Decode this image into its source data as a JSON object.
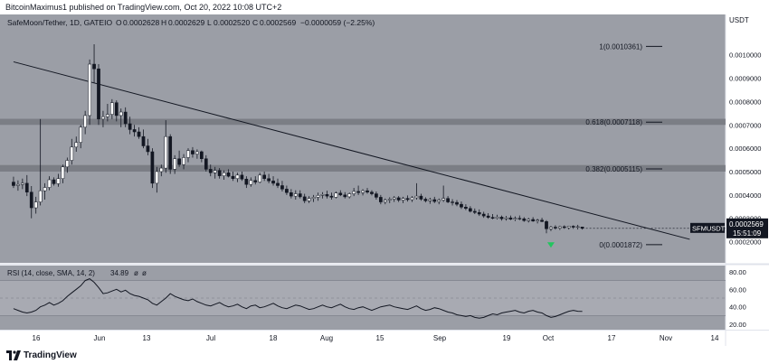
{
  "header": {
    "text": "BitcoinMaximus1 published on TradingView.com, Oct 20, 2022 10:08 UTC+2"
  },
  "legend": {
    "symbol": "SafeMoon/Tether, 1D, GATEIO",
    "o_label": "O",
    "o_value": "0.0002628",
    "h_label": "H",
    "h_value": "0.0002629",
    "l_label": "L",
    "l_value": "0.0002520",
    "c_label": "C",
    "c_value": "0.0002569",
    "change": "−0.0000059 (−2.25%)"
  },
  "rsi_legend": {
    "name": "RSI (14, close, SMA, 14, 2)",
    "value": "34.89",
    "extra1": "ø",
    "extra2": "ø"
  },
  "footer": {
    "brand": "TradingView"
  },
  "colors": {
    "background": "#9b9ea6",
    "candle_up": "#ffffff",
    "candle_down": "#131722",
    "zone": "#707379",
    "rsi_band": "#b0b3ba",
    "green_arrow": "#22c55e",
    "price_tag": "#131722"
  },
  "chart_data": [
    {
      "type": "candlestick",
      "title": "SafeMoon/Tether, 1D, GATEIO",
      "currency": "USDT",
      "y_ticks": [
        "0.0010000",
        "0.0009000",
        "0.0008000",
        "0.0007000",
        "0.0006000",
        "0.0005000",
        "0.0004000",
        "0.0003000",
        "0.0002000"
      ],
      "x_ticks": [
        "16",
        "Jun",
        "13",
        "Jul",
        "18",
        "Aug",
        "15",
        "Sep",
        "19",
        "Oct",
        "17",
        "Nov",
        "14"
      ],
      "ylim": [
        0.000175,
        0.00108
      ],
      "fib_levels": [
        {
          "label": "1(0.0010361)",
          "value": 0.0010361
        },
        {
          "label": "0.618(0.0007118)",
          "value": 0.0007118
        },
        {
          "label": "0.382(0.0005115)",
          "value": 0.0005115
        },
        {
          "label": "0(0.0001872)",
          "value": 0.0001872
        }
      ],
      "resistance_zones": [
        {
          "low": 0.0007,
          "high": 0.000726
        },
        {
          "low": 0.0005,
          "high": 0.000528
        }
      ],
      "trendline": {
        "from": {
          "day": 1,
          "price": 0.00097
        },
        "to": {
          "day": 152,
          "price": 0.00021
        }
      },
      "current_price": "0.0002569",
      "countdown": "15:51:09",
      "ticker": "SFMUSDT",
      "candles": [
        [
          0.000455,
          0.000478,
          0.00043,
          0.00044
        ],
        [
          0.00044,
          0.000462,
          0.000418,
          0.000445
        ],
        [
          0.000445,
          0.00047,
          0.000425,
          0.00045
        ],
        [
          0.00045,
          0.000485,
          0.000395,
          0.000412
        ],
        [
          0.000412,
          0.000438,
          0.0003,
          0.000345
        ],
        [
          0.000345,
          0.000392,
          0.00032,
          0.00037
        ],
        [
          0.00037,
          0.000725,
          0.000355,
          0.000418
        ],
        [
          0.000418,
          0.00045,
          0.00038,
          0.000432
        ],
        [
          0.000432,
          0.00048,
          0.00042,
          0.000465
        ],
        [
          0.000465,
          0.000475,
          0.00044,
          0.000448
        ],
        [
          0.000448,
          0.00049,
          0.000435,
          0.00047
        ],
        [
          0.00047,
          0.00053,
          0.00045,
          0.00052
        ],
        [
          0.00052,
          0.00056,
          0.000495,
          0.000548
        ],
        [
          0.000548,
          0.00064,
          0.00053,
          0.000605
        ],
        [
          0.000605,
          0.00065,
          0.000585,
          0.000625
        ],
        [
          0.000625,
          0.0007,
          0.0006,
          0.00069
        ],
        [
          0.00069,
          0.00076,
          0.00066,
          0.00074
        ],
        [
          0.00074,
          0.00098,
          0.0007,
          0.00096
        ],
        [
          0.00096,
          0.001045,
          0.00088,
          0.00094
        ],
        [
          0.00094,
          0.00096,
          0.0007,
          0.000725
        ],
        [
          0.000725,
          0.00076,
          0.00069,
          0.000735
        ],
        [
          0.000735,
          0.00079,
          0.000715,
          0.000745
        ],
        [
          0.000745,
          0.00081,
          0.000725,
          0.000795
        ],
        [
          0.000795,
          0.000805,
          0.000715,
          0.00074
        ],
        [
          0.00074,
          0.00077,
          0.00069,
          0.000755
        ],
        [
          0.000755,
          0.000775,
          0.00069,
          0.000705
        ],
        [
          0.000705,
          0.000735,
          0.00066,
          0.00068
        ],
        [
          0.00068,
          0.0007,
          0.00065,
          0.00067
        ],
        [
          0.00067,
          0.00069,
          0.00064,
          0.00065
        ],
        [
          0.00065,
          0.00068,
          0.0006,
          0.00061
        ],
        [
          0.00061,
          0.00064,
          0.00057,
          0.000585
        ],
        [
          0.000585,
          0.0006,
          0.00043,
          0.00045
        ],
        [
          0.00045,
          0.00052,
          0.00041,
          0.0005
        ],
        [
          0.0005,
          0.00053,
          0.00048,
          0.000515
        ],
        [
          0.000515,
          0.00072,
          0.000495,
          0.00065
        ],
        [
          0.00065,
          0.00066,
          0.00049,
          0.00051
        ],
        [
          0.00051,
          0.00057,
          0.00049,
          0.000555
        ],
        [
          0.000555,
          0.00059,
          0.00052,
          0.00053
        ],
        [
          0.00053,
          0.000575,
          0.00051,
          0.00056
        ],
        [
          0.00056,
          0.0006,
          0.00054,
          0.00059
        ],
        [
          0.00059,
          0.000605,
          0.00056,
          0.000575
        ],
        [
          0.000575,
          0.000595,
          0.000555,
          0.000585
        ],
        [
          0.000585,
          0.00059,
          0.00054,
          0.000555
        ],
        [
          0.000555,
          0.00057,
          0.0005,
          0.00051
        ],
        [
          0.00051,
          0.00053,
          0.00048,
          0.000495
        ],
        [
          0.000495,
          0.00052,
          0.00047,
          0.000505
        ],
        [
          0.000505,
          0.000515,
          0.00047,
          0.000482
        ],
        [
          0.000482,
          0.000505,
          0.000465,
          0.000495
        ],
        [
          0.000495,
          0.00051,
          0.000475,
          0.00048
        ],
        [
          0.00048,
          0.0005,
          0.00046,
          0.00047
        ],
        [
          0.00047,
          0.000495,
          0.000455,
          0.000485
        ],
        [
          0.000485,
          0.0005,
          0.00046,
          0.000468
        ],
        [
          0.000468,
          0.00048,
          0.00043,
          0.000445
        ],
        [
          0.000445,
          0.000475,
          0.000435,
          0.000462
        ],
        [
          0.000462,
          0.00048,
          0.000445,
          0.000455
        ],
        [
          0.000455,
          0.000495,
          0.00045,
          0.000485
        ],
        [
          0.000485,
          0.0005,
          0.00046,
          0.00047
        ],
        [
          0.00047,
          0.00049,
          0.00045,
          0.00046
        ],
        [
          0.00046,
          0.00048,
          0.00044,
          0.00045
        ],
        [
          0.00045,
          0.00047,
          0.00043,
          0.00044
        ],
        [
          0.00044,
          0.00046,
          0.000415,
          0.000425
        ],
        [
          0.000425,
          0.00044,
          0.0004,
          0.00041
        ],
        [
          0.00041,
          0.000425,
          0.000385,
          0.000395
        ],
        [
          0.000395,
          0.00042,
          0.00038,
          0.000405
        ],
        [
          0.000405,
          0.00042,
          0.000385,
          0.000392
        ],
        [
          0.000392,
          0.000405,
          0.000365,
          0.000375
        ],
        [
          0.000375,
          0.000395,
          0.000365,
          0.000385
        ],
        [
          0.000385,
          0.0004,
          0.00037,
          0.00039
        ],
        [
          0.00039,
          0.00041,
          0.000375,
          0.000398
        ],
        [
          0.000398,
          0.000412,
          0.000385,
          0.000402
        ],
        [
          0.000402,
          0.000418,
          0.000385,
          0.000395
        ],
        [
          0.000395,
          0.00041,
          0.00038,
          0.00039
        ],
        [
          0.00039,
          0.000415,
          0.000385,
          0.000408
        ],
        [
          0.000408,
          0.00042,
          0.000395,
          0.0004
        ],
        [
          0.0004,
          0.000412,
          0.000385,
          0.000392
        ],
        [
          0.000392,
          0.00041,
          0.000385,
          0.000405
        ],
        [
          0.000405,
          0.00043,
          0.000395,
          0.000415
        ],
        [
          0.000415,
          0.00044,
          0.0004,
          0.00041
        ],
        [
          0.00041,
          0.000425,
          0.000398,
          0.000418
        ],
        [
          0.000418,
          0.00043,
          0.000405,
          0.000412
        ],
        [
          0.000412,
          0.00042,
          0.000398,
          0.000405
        ],
        [
          0.000405,
          0.000415,
          0.00038,
          0.00039
        ],
        [
          0.00039,
          0.0004,
          0.00036,
          0.00037
        ],
        [
          0.00037,
          0.000385,
          0.00036,
          0.000378
        ],
        [
          0.000378,
          0.00039,
          0.000365,
          0.000382
        ],
        [
          0.000382,
          0.000395,
          0.00037,
          0.000388
        ],
        [
          0.000388,
          0.000395,
          0.00037,
          0.000378
        ],
        [
          0.000378,
          0.000392,
          0.000365,
          0.000385
        ],
        [
          0.000385,
          0.000398,
          0.000372,
          0.00038
        ],
        [
          0.00038,
          0.000395,
          0.00037,
          0.000388
        ],
        [
          0.000388,
          0.00045,
          0.00038,
          0.000395
        ],
        [
          0.000395,
          0.000405,
          0.000375,
          0.000382
        ],
        [
          0.000382,
          0.00039,
          0.000368,
          0.000375
        ],
        [
          0.000375,
          0.000388,
          0.000362,
          0.00038
        ],
        [
          0.00038,
          0.000392,
          0.000365,
          0.000372
        ],
        [
          0.000372,
          0.000385,
          0.00036,
          0.000378
        ],
        [
          0.000378,
          0.00044,
          0.00037,
          0.000385
        ],
        [
          0.000385,
          0.000395,
          0.000365,
          0.00037
        ],
        [
          0.00037,
          0.000382,
          0.000355,
          0.000368
        ],
        [
          0.000368,
          0.000378,
          0.000352,
          0.00036
        ],
        [
          0.00036,
          0.000372,
          0.00034,
          0.000348
        ],
        [
          0.000348,
          0.00036,
          0.000335,
          0.000342
        ],
        [
          0.000342,
          0.000352,
          0.000325,
          0.00033
        ],
        [
          0.00033,
          0.000342,
          0.000318,
          0.000325
        ],
        [
          0.000325,
          0.000338,
          0.00031,
          0.000318
        ],
        [
          0.000318,
          0.000328,
          0.000302,
          0.00031
        ],
        [
          0.00031,
          0.000322,
          0.000298,
          0.000304
        ],
        [
          0.000304,
          0.000318,
          0.000296,
          0.0003
        ],
        [
          0.0003,
          0.000315,
          0.000295,
          0.000305
        ],
        [
          0.000305,
          0.000312,
          0.00029,
          0.000298
        ],
        [
          0.000298,
          0.00031,
          0.00029,
          0.000302
        ],
        [
          0.000302,
          0.000312,
          0.000292,
          0.000296
        ],
        [
          0.000296,
          0.000308,
          0.000288,
          0.0003
        ],
        [
          0.0003,
          0.000312,
          0.000292,
          0.000298
        ],
        [
          0.000298,
          0.000305,
          0.000285,
          0.00029
        ],
        [
          0.00029,
          0.000302,
          0.000282,
          0.000295
        ],
        [
          0.000295,
          0.000305,
          0.000285,
          0.000288
        ],
        [
          0.000288,
          0.000298,
          0.000278,
          0.000292
        ],
        [
          0.000292,
          0.000302,
          0.000284,
          0.000286
        ],
        [
          0.000286,
          0.000292,
          0.000236,
          0.000255
        ],
        [
          0.000255,
          0.000268,
          0.000245,
          0.000262
        ],
        [
          0.000262,
          0.00027,
          0.000252,
          0.000258
        ],
        [
          0.000258,
          0.000268,
          0.00025,
          0.000264
        ],
        [
          0.000264,
          0.00027,
          0.000255,
          0.00026
        ],
        [
          0.00026,
          0.000268,
          0.000252,
          0.000266
        ],
        [
          0.000266,
          0.00027,
          0.000255,
          0.000262
        ],
        [
          0.000262,
          0.000272,
          0.000252,
          0.000264
        ],
        [
          0.0002628,
          0.0002629,
          0.000252,
          0.0002569
        ]
      ]
    },
    {
      "type": "line",
      "title": "RSI (14, close, SMA, 14, 2)",
      "y_ticks": [
        "80.00",
        "60.00",
        "40.00",
        "20.00"
      ],
      "ylim": [
        15,
        85
      ],
      "bands": [
        30,
        50,
        70
      ],
      "values": [
        38,
        36,
        34,
        33,
        34,
        36,
        40,
        42,
        45,
        42,
        44,
        47,
        52,
        56,
        60,
        64,
        70,
        72,
        68,
        62,
        55,
        56,
        58,
        60,
        57,
        59,
        55,
        53,
        52,
        50,
        48,
        44,
        42,
        46,
        50,
        55,
        52,
        50,
        48,
        47,
        49,
        46,
        44,
        42,
        41,
        43,
        45,
        42,
        40,
        41,
        43,
        40,
        38,
        41,
        42,
        39,
        40,
        42,
        44,
        41,
        39,
        38,
        40,
        42,
        41,
        39,
        37,
        38,
        40,
        42,
        40,
        39,
        41,
        43,
        40,
        38,
        37,
        39,
        40,
        38,
        36,
        38,
        40,
        41,
        42,
        40,
        39,
        38,
        37,
        39,
        41,
        38,
        36,
        37,
        39,
        38,
        36,
        34,
        33,
        31,
        30,
        29,
        30,
        28,
        27,
        28,
        30,
        32,
        31,
        33,
        34,
        35,
        36,
        34,
        33,
        35,
        36,
        34,
        33,
        30,
        28,
        29,
        31,
        33,
        35,
        36,
        35,
        34.89
      ]
    }
  ]
}
